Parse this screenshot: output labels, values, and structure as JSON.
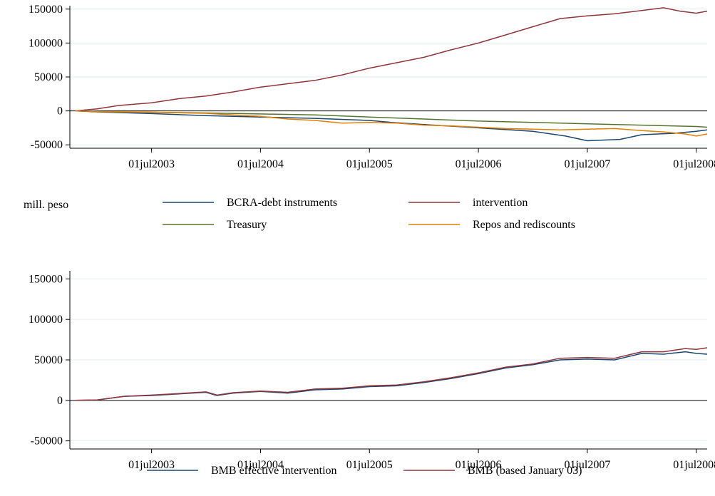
{
  "unit_label": "mill. peso",
  "chart_data": [
    {
      "type": "line",
      "title": "",
      "xlabel": "",
      "ylabel": "",
      "x_ticks": [
        "01jul2003",
        "01jul2004",
        "01jul2005",
        "01jul2006",
        "01jul2007",
        "01jul2008"
      ],
      "x_tick_values": [
        2003.5,
        2004.5,
        2005.5,
        2006.5,
        2007.5,
        2008.5
      ],
      "xlim": [
        2002.75,
        2008.6
      ],
      "y_ticks": [
        "150000",
        "100000",
        "50000",
        "0",
        "-50000"
      ],
      "y_tick_values": [
        150000,
        100000,
        50000,
        0,
        -50000
      ],
      "ylim": [
        -55000,
        155000
      ],
      "grid": true,
      "legend_position": "bottom",
      "series": [
        {
          "name": "BCRA-debt instruments",
          "color": "#1a476f",
          "x": [
            2002.8,
            2003.0,
            2003.5,
            2004.0,
            2004.5,
            2005.0,
            2005.5,
            2005.7,
            2006.0,
            2006.5,
            2007.0,
            2007.3,
            2007.5,
            2007.8,
            2008.0,
            2008.3,
            2008.5,
            2008.6
          ],
          "y": [
            0,
            -1500,
            -4000,
            -7000,
            -9000,
            -11000,
            -14000,
            -17000,
            -20000,
            -25000,
            -30000,
            -37000,
            -44000,
            -42000,
            -35000,
            -33000,
            -30000,
            -28000
          ]
        },
        {
          "name": "intervention",
          "color": "#90353b",
          "x": [
            2002.8,
            2003.0,
            2003.2,
            2003.5,
            2003.75,
            2004.0,
            2004.25,
            2004.5,
            2004.75,
            2005.0,
            2005.25,
            2005.5,
            2005.75,
            2006.0,
            2006.25,
            2006.5,
            2006.75,
            2007.0,
            2007.25,
            2007.5,
            2007.75,
            2008.0,
            2008.2,
            2008.35,
            2008.5,
            2008.6
          ],
          "y": [
            0,
            3000,
            8000,
            12000,
            18000,
            22000,
            28000,
            35000,
            40000,
            45000,
            53000,
            63000,
            71000,
            79000,
            90000,
            100000,
            112000,
            124000,
            136000,
            140000,
            143000,
            148000,
            152000,
            147000,
            144000,
            147000
          ]
        },
        {
          "name": "Treasury",
          "color": "#55752f",
          "x": [
            2002.8,
            2003.0,
            2003.5,
            2004.0,
            2004.5,
            2005.0,
            2005.5,
            2006.0,
            2006.5,
            2007.0,
            2007.5,
            2008.0,
            2008.5,
            2008.6
          ],
          "y": [
            0,
            -1000,
            -2000,
            -3000,
            -4500,
            -6000,
            -9000,
            -12000,
            -15000,
            -17000,
            -19000,
            -21000,
            -23000,
            -24000
          ]
        },
        {
          "name": "Repos and rediscounts",
          "color": "#e37e00",
          "x": [
            2002.8,
            2003.0,
            2003.5,
            2004.0,
            2004.25,
            2004.5,
            2004.75,
            2005.0,
            2005.25,
            2005.5,
            2005.75,
            2006.0,
            2006.25,
            2006.5,
            2006.75,
            2007.0,
            2007.25,
            2007.5,
            2007.75,
            2008.0,
            2008.2,
            2008.4,
            2008.5,
            2008.6
          ],
          "y": [
            0,
            -1000,
            -2000,
            -3500,
            -6000,
            -8000,
            -12000,
            -14000,
            -18000,
            -17000,
            -18000,
            -21000,
            -22000,
            -24000,
            -26000,
            -27000,
            -28000,
            -27000,
            -26000,
            -29000,
            -31000,
            -34000,
            -37000,
            -34000
          ]
        }
      ]
    },
    {
      "type": "line",
      "title": "",
      "xlabel": "",
      "ylabel": "",
      "x_ticks": [
        "01jul2003",
        "01jul2004",
        "01jul2005",
        "01jul2006",
        "01jul2007",
        "01jul2008"
      ],
      "x_tick_values": [
        2003.5,
        2004.5,
        2005.5,
        2006.5,
        2007.5,
        2008.5
      ],
      "xlim": [
        2002.75,
        2008.6
      ],
      "y_ticks": [
        "150000",
        "100000",
        "50000",
        "0",
        "-50000"
      ],
      "y_tick_values": [
        150000,
        100000,
        50000,
        0,
        -50000
      ],
      "ylim": [
        -60000,
        160000
      ],
      "grid": true,
      "legend_position": "bottom",
      "series": [
        {
          "name": "BMB effective intervention",
          "color": "#1a476f",
          "x": [
            2002.8,
            2003.0,
            2003.25,
            2003.5,
            2003.75,
            2004.0,
            2004.1,
            2004.25,
            2004.5,
            2004.75,
            2005.0,
            2005.25,
            2005.5,
            2005.75,
            2006.0,
            2006.25,
            2006.5,
            2006.75,
            2007.0,
            2007.25,
            2007.5,
            2007.75,
            2008.0,
            2008.2,
            2008.4,
            2008.5,
            2008.6
          ],
          "y": [
            0,
            500,
            5000,
            6000,
            8000,
            10000,
            6000,
            9000,
            11000,
            9000,
            13000,
            14000,
            17000,
            18000,
            22000,
            27000,
            33000,
            40000,
            44000,
            50000,
            51000,
            50000,
            58000,
            57000,
            60000,
            58000,
            57000
          ]
        },
        {
          "name": "BMB (based January 03)",
          "color": "#90353b",
          "x": [
            2002.8,
            2003.0,
            2003.25,
            2003.5,
            2003.75,
            2004.0,
            2004.1,
            2004.25,
            2004.5,
            2004.75,
            2005.0,
            2005.25,
            2005.5,
            2005.75,
            2006.0,
            2006.25,
            2006.5,
            2006.75,
            2007.0,
            2007.25,
            2007.5,
            2007.75,
            2008.0,
            2008.2,
            2008.4,
            2008.5,
            2008.6
          ],
          "y": [
            0,
            500,
            5000,
            6500,
            8500,
            10500,
            6500,
            9500,
            11500,
            10000,
            14000,
            15000,
            18000,
            19000,
            23000,
            28000,
            34000,
            41000,
            45000,
            52000,
            53000,
            52000,
            60000,
            60000,
            64000,
            63000,
            65000
          ]
        }
      ]
    }
  ]
}
